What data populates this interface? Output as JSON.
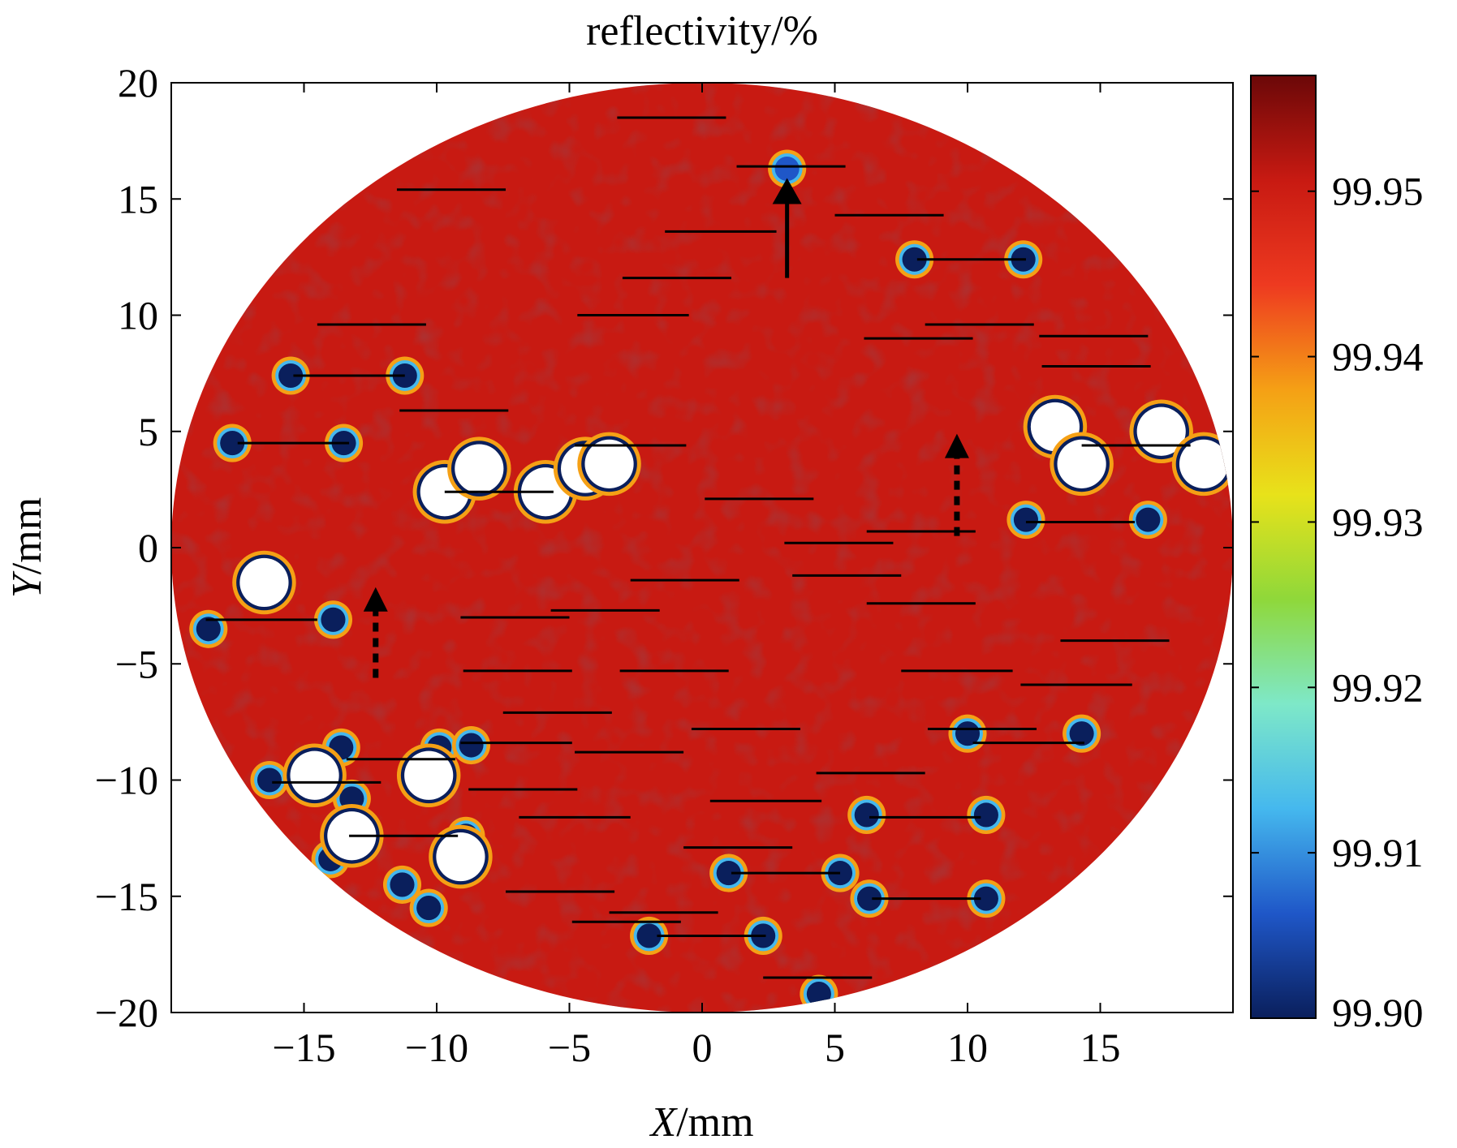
{
  "chart_data": {
    "type": "heatmap",
    "title": "reflectivity/%",
    "xlabel": {
      "var": "X",
      "unit": "/mm"
    },
    "ylabel": {
      "var": "Y",
      "unit": "/mm"
    },
    "xlim": [
      -20,
      20
    ],
    "ylim": [
      -20,
      20
    ],
    "x_ticks": [
      -15,
      -10,
      -5,
      0,
      5,
      10,
      15
    ],
    "y_ticks": [
      20,
      15,
      10,
      5,
      0,
      -5,
      -10,
      -15,
      -20
    ],
    "x_tick_labels": [
      "−15",
      "−10",
      "−5",
      "0",
      "5",
      "10",
      "15"
    ],
    "y_tick_labels": [
      "20",
      "15",
      "10",
      "5",
      "0",
      "−5",
      "−10",
      "−15",
      "−20"
    ],
    "grid": false,
    "aperture_radius_mm": 20,
    "colorbar": {
      "min": 99.9,
      "max": 99.957,
      "ticks": [
        99.9,
        99.91,
        99.92,
        99.93,
        99.94,
        99.95
      ],
      "tick_labels": [
        "99.90",
        "99.91",
        "99.92",
        "99.93",
        "99.94",
        "99.95"
      ],
      "colormap": [
        "#0a1f5c",
        "#1f57c8",
        "#45b8ee",
        "#7ee8c8",
        "#8fd83a",
        "#e8e21a",
        "#f5a015",
        "#ee3a20",
        "#c81a12",
        "#6b0808"
      ]
    },
    "background_value": 99.952,
    "defects": [
      {
        "x": 3.2,
        "y": 16.3,
        "value": 99.905
      },
      {
        "x": 8.0,
        "y": 12.4,
        "value": 99.9
      },
      {
        "x": 12.1,
        "y": 12.4,
        "value": 99.9
      },
      {
        "x": -15.5,
        "y": 7.4,
        "value": 99.9
      },
      {
        "x": -11.2,
        "y": 7.4,
        "value": 99.9
      },
      {
        "x": -17.7,
        "y": 4.5,
        "value": 99.9
      },
      {
        "x": -13.5,
        "y": 4.5,
        "value": 99.9
      },
      {
        "x": 12.2,
        "y": 1.2,
        "value": 99.9
      },
      {
        "x": 16.8,
        "y": 1.2,
        "value": 99.9
      },
      {
        "x": -13.9,
        "y": -3.1,
        "value": 99.9
      },
      {
        "x": -18.6,
        "y": -3.5,
        "value": 99.9
      },
      {
        "x": -13.6,
        "y": -8.6,
        "value": 99.9
      },
      {
        "x": -9.9,
        "y": -8.6,
        "value": 99.9
      },
      {
        "x": -8.7,
        "y": -8.5,
        "value": 99.9
      },
      {
        "x": -16.3,
        "y": -10.0,
        "value": 99.9
      },
      {
        "x": -14.7,
        "y": -10.0,
        "value": 99.9
      },
      {
        "x": -13.2,
        "y": -10.8,
        "value": 99.9
      },
      {
        "x": -13.3,
        "y": -12.5,
        "value": 99.9
      },
      {
        "x": -8.9,
        "y": -12.4,
        "value": 99.9
      },
      {
        "x": -11.3,
        "y": -14.5,
        "value": 99.9
      },
      {
        "x": -10.3,
        "y": -15.5,
        "value": 99.9
      },
      {
        "x": 6.2,
        "y": -11.5,
        "value": 99.9
      },
      {
        "x": 10.7,
        "y": -11.5,
        "value": 99.9
      },
      {
        "x": 1.0,
        "y": -14.0,
        "value": 99.9
      },
      {
        "x": 5.2,
        "y": -14.0,
        "value": 99.9
      },
      {
        "x": 6.3,
        "y": -15.1,
        "value": 99.9
      },
      {
        "x": 10.7,
        "y": -15.1,
        "value": 99.9
      },
      {
        "x": -2.0,
        "y": -16.7,
        "value": 99.9
      },
      {
        "x": 2.3,
        "y": -16.7,
        "value": 99.9
      },
      {
        "x": 10.0,
        "y": -8.0,
        "value": 99.9
      },
      {
        "x": 14.3,
        "y": -8.0,
        "value": 99.9
      },
      {
        "x": 4.4,
        "y": -19.2,
        "value": 99.9
      },
      {
        "x": -14.0,
        "y": -13.4,
        "value": 99.9
      }
    ],
    "saturated_spots": [
      {
        "x": -9.7,
        "y": 2.4
      },
      {
        "x": -8.4,
        "y": 3.4
      },
      {
        "x": -5.9,
        "y": 2.4
      },
      {
        "x": -4.4,
        "y": 3.4
      },
      {
        "x": -3.5,
        "y": 3.6
      },
      {
        "x": 13.3,
        "y": 5.2
      },
      {
        "x": 14.3,
        "y": 3.6
      },
      {
        "x": 17.3,
        "y": 5.0
      },
      {
        "x": 18.9,
        "y": 3.6
      },
      {
        "x": -16.5,
        "y": -1.5
      },
      {
        "x": -14.6,
        "y": -9.8
      },
      {
        "x": -10.3,
        "y": -9.8
      },
      {
        "x": -13.2,
        "y": -12.4
      },
      {
        "x": -9.1,
        "y": -13.3
      }
    ],
    "segments": [
      [
        -3.2,
        18.5,
        0.9,
        18.5
      ],
      [
        1.3,
        16.4,
        5.4,
        16.4
      ],
      [
        -11.5,
        15.4,
        -7.4,
        15.4
      ],
      [
        -1.4,
        13.6,
        2.8,
        13.6
      ],
      [
        5.0,
        14.3,
        9.1,
        14.3
      ],
      [
        8.1,
        12.4,
        12.2,
        12.4
      ],
      [
        -3.0,
        11.6,
        1.1,
        11.6
      ],
      [
        -4.7,
        10.0,
        -0.5,
        10.0
      ],
      [
        -14.5,
        9.6,
        -10.4,
        9.6
      ],
      [
        8.4,
        9.6,
        12.5,
        9.6
      ],
      [
        6.1,
        9.0,
        10.2,
        9.0
      ],
      [
        12.7,
        9.1,
        16.8,
        9.1
      ],
      [
        -15.4,
        7.4,
        -11.2,
        7.4
      ],
      [
        12.8,
        7.8,
        16.9,
        7.8
      ],
      [
        -11.4,
        5.9,
        -7.3,
        5.9
      ],
      [
        -17.5,
        4.5,
        -13.3,
        4.5
      ],
      [
        -4.8,
        4.4,
        -0.6,
        4.4
      ],
      [
        14.3,
        4.4,
        18.4,
        4.4
      ],
      [
        -9.7,
        2.4,
        -5.6,
        2.4
      ],
      [
        0.1,
        2.1,
        4.2,
        2.1
      ],
      [
        12.2,
        1.1,
        16.3,
        1.1
      ],
      [
        6.2,
        0.7,
        10.3,
        0.7
      ],
      [
        3.1,
        0.2,
        7.2,
        0.2
      ],
      [
        -2.7,
        -1.4,
        1.4,
        -1.4
      ],
      [
        3.4,
        -1.2,
        7.5,
        -1.2
      ],
      [
        -5.7,
        -2.7,
        -1.6,
        -2.7
      ],
      [
        6.2,
        -2.4,
        10.3,
        -2.4
      ],
      [
        -9.1,
        -3.0,
        -5.0,
        -3.0
      ],
      [
        -18.7,
        -3.1,
        -14.5,
        -3.1
      ],
      [
        13.5,
        -4.0,
        17.6,
        -4.0
      ],
      [
        -9.0,
        -5.3,
        -4.9,
        -5.3
      ],
      [
        -3.1,
        -5.3,
        1.0,
        -5.3
      ],
      [
        7.5,
        -5.3,
        11.7,
        -5.3
      ],
      [
        12.0,
        -5.9,
        16.2,
        -5.9
      ],
      [
        -7.5,
        -7.1,
        -3.4,
        -7.1
      ],
      [
        -0.4,
        -7.8,
        3.7,
        -7.8
      ],
      [
        8.5,
        -7.8,
        12.6,
        -7.8
      ],
      [
        -9.1,
        -8.4,
        -4.9,
        -8.4
      ],
      [
        -4.8,
        -8.8,
        -0.7,
        -8.8
      ],
      [
        -13.4,
        -9.1,
        -9.3,
        -9.1
      ],
      [
        10.2,
        -8.4,
        14.4,
        -8.4
      ],
      [
        4.3,
        -9.7,
        8.4,
        -9.7
      ],
      [
        -16.2,
        -10.1,
        -12.1,
        -10.1
      ],
      [
        -8.8,
        -10.4,
        -4.7,
        -10.4
      ],
      [
        0.3,
        -10.9,
        4.5,
        -10.9
      ],
      [
        -6.9,
        -11.6,
        -2.7,
        -11.6
      ],
      [
        6.3,
        -11.6,
        10.5,
        -11.6
      ],
      [
        -13.3,
        -12.4,
        -9.2,
        -12.4
      ],
      [
        -0.7,
        -12.9,
        3.4,
        -12.9
      ],
      [
        1.1,
        -14.0,
        5.2,
        -14.0
      ],
      [
        -7.4,
        -14.8,
        -3.3,
        -14.8
      ],
      [
        6.4,
        -15.1,
        10.5,
        -15.1
      ],
      [
        -3.5,
        -15.7,
        0.6,
        -15.7
      ],
      [
        -4.9,
        -16.1,
        -0.8,
        -16.1
      ],
      [
        -1.7,
        -16.7,
        2.4,
        -16.7
      ],
      [
        2.3,
        -18.5,
        6.4,
        -18.5
      ]
    ],
    "arrows": [
      {
        "style": "solid",
        "x": 3.2,
        "y_from": 11.6,
        "y_to": 15.9
      },
      {
        "style": "dashed",
        "x": 9.6,
        "y_from": 0.5,
        "y_to": 4.9
      },
      {
        "style": "dashed",
        "x": -12.3,
        "y_from": -5.6,
        "y_to": -1.7
      }
    ]
  }
}
